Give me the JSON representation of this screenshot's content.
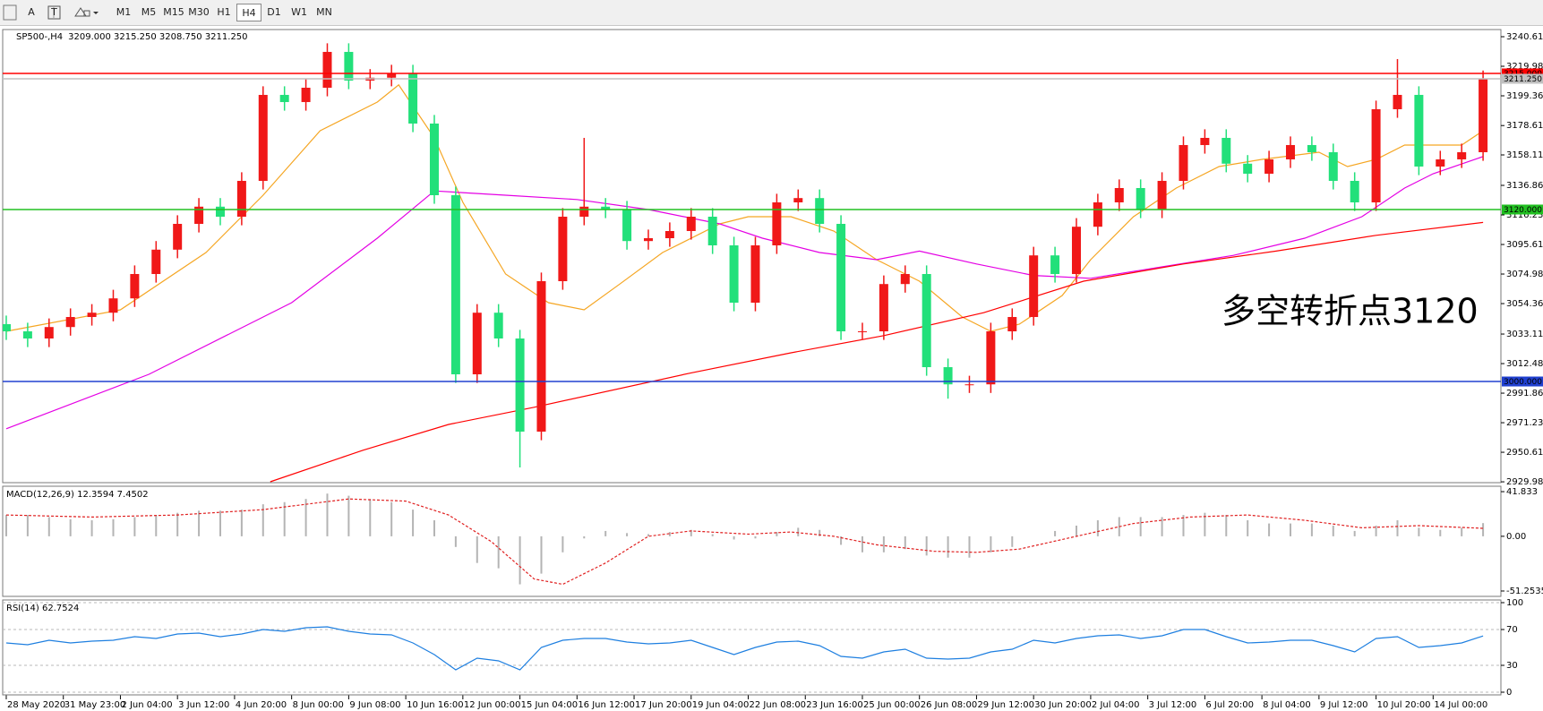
{
  "toolbar": {
    "tools": [
      "A",
      "T"
    ],
    "timeframes": [
      "M1",
      "M5",
      "M15",
      "M30",
      "H1",
      "H4",
      "D1",
      "W1",
      "MN"
    ],
    "selected_index": 5
  },
  "chart_data": [
    {
      "type": "candlestick",
      "title": "SP500-,H4",
      "subtitle": "3209.000 3215.250 3208.750 3211.250",
      "x": [
        0,
        3,
        6,
        9,
        12,
        15,
        18,
        21,
        24,
        27,
        30,
        33,
        36,
        39,
        42,
        45,
        48,
        51,
        54,
        57,
        60,
        63,
        66,
        69,
        72,
        75,
        78,
        81,
        84,
        87,
        90,
        93,
        96,
        99,
        102,
        105,
        108,
        111,
        114,
        117,
        120,
        123,
        126,
        129,
        132,
        135,
        138,
        141,
        144,
        147,
        150,
        153,
        156,
        159,
        162,
        165,
        168,
        171,
        174,
        177,
        180,
        183,
        186,
        189,
        192,
        195,
        198,
        201,
        204,
        207
      ],
      "open": [
        3040,
        3035,
        3030,
        3038,
        3045,
        3048,
        3058,
        3075,
        3092,
        3110,
        3122,
        3115,
        3140,
        3200,
        3195,
        3205,
        3230,
        3210,
        3212,
        3215,
        3180,
        3130,
        3005,
        3048,
        3030,
        2965,
        3070,
        3115,
        3122,
        3120,
        3098,
        3100,
        3105,
        3115,
        3095,
        3055,
        3095,
        3125,
        3128,
        3110,
        3035,
        3035,
        3068,
        3075,
        3010,
        2998,
        2998,
        3035,
        3045,
        3088,
        3075,
        3108,
        3125,
        3135,
        3120,
        3140,
        3165,
        3170,
        3152,
        3145,
        3155,
        3165,
        3160,
        3140,
        3125,
        3190,
        3200,
        3150,
        3155,
        3160
      ],
      "high": [
        3046,
        3041,
        3044,
        3051,
        3054,
        3064,
        3081,
        3098,
        3116,
        3128,
        3128,
        3146,
        3206,
        3206,
        3211,
        3236,
        3236,
        3218,
        3221,
        3221,
        3186,
        3136,
        3054,
        3054,
        3036,
        3076,
        3121,
        3170,
        3128,
        3126,
        3106,
        3111,
        3121,
        3121,
        3101,
        3101,
        3131,
        3134,
        3134,
        3116,
        3041,
        3074,
        3081,
        3081,
        3016,
        3004,
        3041,
        3051,
        3094,
        3094,
        3114,
        3131,
        3141,
        3141,
        3146,
        3171,
        3176,
        3176,
        3158,
        3161,
        3171,
        3171,
        3166,
        3146,
        3196,
        3225,
        3206,
        3161,
        3166,
        3217
      ],
      "low": [
        3029,
        3024,
        3024,
        3032,
        3039,
        3042,
        3052,
        3069,
        3086,
        3104,
        3109,
        3109,
        3134,
        3189,
        3189,
        3199,
        3204,
        3204,
        3206,
        3174,
        3124,
        2999,
        2999,
        3024,
        2940,
        2959,
        3064,
        3109,
        3114,
        3092,
        3092,
        3094,
        3099,
        3089,
        3049,
        3049,
        3089,
        3119,
        3104,
        3029,
        3029,
        3029,
        3062,
        3004,
        2988,
        2992,
        2992,
        3029,
        3039,
        3069,
        3069,
        3102,
        3119,
        3114,
        3114,
        3134,
        3159,
        3146,
        3139,
        3139,
        3149,
        3154,
        3134,
        3119,
        3119,
        3184,
        3144,
        3144,
        3149,
        3154
      ],
      "close": [
        3035,
        3030,
        3038,
        3045,
        3048,
        3058,
        3075,
        3092,
        3110,
        3122,
        3115,
        3140,
        3200,
        3195,
        3205,
        3230,
        3210,
        3212,
        3215,
        3180,
        3130,
        3005,
        3048,
        3030,
        2965,
        3070,
        3115,
        3122,
        3120,
        3098,
        3100,
        3105,
        3115,
        3095,
        3055,
        3095,
        3125,
        3128,
        3110,
        3035,
        3035,
        3068,
        3075,
        3010,
        2998,
        2998,
        3035,
        3045,
        3088,
        3075,
        3108,
        3125,
        3135,
        3120,
        3140,
        3165,
        3170,
        3152,
        3145,
        3155,
        3165,
        3160,
        3140,
        3125,
        3190,
        3200,
        3150,
        3155,
        3160,
        3211
      ],
      "up_color": "#f01818",
      "down_color": "#22e07a",
      "lines": [
        {
          "color": "#f5a623",
          "x": [
            0,
            16,
            28,
            36,
            44,
            52,
            55,
            60,
            64,
            70,
            76,
            81,
            86,
            92,
            100,
            104,
            110,
            116,
            122,
            128,
            134,
            138,
            142,
            148,
            152,
            158,
            164,
            170,
            176,
            184,
            188,
            192,
            196,
            200,
            204,
            207
          ],
          "values": [
            3035,
            3050,
            3090,
            3130,
            3175,
            3195,
            3207,
            3170,
            3125,
            3075,
            3055,
            3050,
            3068,
            3090,
            3110,
            3115,
            3115,
            3105,
            3085,
            3070,
            3045,
            3035,
            3040,
            3060,
            3085,
            3115,
            3135,
            3150,
            3155,
            3160,
            3150,
            3155,
            3165,
            3165,
            3165,
            3175
          ]
        },
        {
          "color": "#e400e4",
          "x": [
            0,
            20,
            40,
            52,
            60,
            70,
            80,
            90,
            100,
            106,
            114,
            122,
            128,
            136,
            144,
            152,
            162,
            172,
            182,
            190,
            196,
            200,
            207
          ],
          "values": [
            2967,
            3005,
            3055,
            3100,
            3133,
            3130,
            3127,
            3120,
            3110,
            3100,
            3090,
            3085,
            3091,
            3082,
            3074,
            3072,
            3080,
            3088,
            3100,
            3115,
            3135,
            3145,
            3157
          ]
        },
        {
          "color": "#ff0000",
          "x": [
            37,
            50,
            62,
            74,
            96,
            110,
            123,
            137,
            151,
            165,
            178,
            192,
            207
          ],
          "values": [
            2930,
            2952,
            2970,
            2982,
            3006,
            3020,
            3032,
            3048,
            3070,
            3082,
            3091,
            3102,
            3111
          ]
        }
      ],
      "levels": [
        {
          "value": 3215,
          "label": "3215.000",
          "color": "#ff0000",
          "text_color": "#ffffff"
        },
        {
          "value": 3211.25,
          "label": "3211.250",
          "color": "#c0c0c0",
          "text_color": "#000000"
        },
        {
          "value": 3120,
          "label": "3120.000",
          "color": "#22c022",
          "text_color": "#ffffff"
        },
        {
          "value": 3000,
          "label": "3000.000",
          "color": "#2040d0",
          "text_color": "#ffffff"
        }
      ],
      "annotation": {
        "text": "多空转折点3120",
        "color": "#e8201c"
      },
      "xlim": [
        -0.5,
        209.5
      ],
      "ylim": [
        2929.4,
        3245.6
      ],
      "yticks": [
        {
          "value": 3240.61,
          "label": "3240.610"
        },
        {
          "value": 3219.985,
          "label": "3219.985"
        },
        {
          "value": 3199.36,
          "label": "3199.360"
        },
        {
          "value": 3178.61,
          "label": "3178.610"
        },
        {
          "value": 3158.11,
          "label": "3158.110"
        },
        {
          "value": 3136.86,
          "label": "3136.860"
        },
        {
          "value": 3116.235,
          "label": "3116.235"
        },
        {
          "value": 3095.61,
          "label": "3095.610"
        },
        {
          "value": 3074.985,
          "label": "3074.985"
        },
        {
          "value": 3054.36,
          "label": "3054.360"
        },
        {
          "value": 3033.11,
          "label": "3033.110"
        },
        {
          "value": 3012.485,
          "label": "3012.485"
        },
        {
          "value": 2991.86,
          "label": "2991.860"
        },
        {
          "value": 2971.235,
          "label": "2971.235"
        },
        {
          "value": 2950.61,
          "label": "2950.610"
        },
        {
          "value": 2929.985,
          "label": "2929.985"
        }
      ],
      "xticks": [
        {
          "value": 0,
          "label": "28 May 2020"
        },
        {
          "value": 8,
          "label": "31 May 23:00"
        },
        {
          "value": 16,
          "label": "2 Jun 04:00"
        },
        {
          "value": 24,
          "label": "3 Jun 12:00"
        },
        {
          "value": 32,
          "label": "4 Jun 20:00"
        },
        {
          "value": 40,
          "label": "8 Jun 00:00"
        },
        {
          "value": 48,
          "label": "9 Jun 08:00"
        },
        {
          "value": 56,
          "label": "10 Jun 16:00"
        },
        {
          "value": 64,
          "label": "12 Jun 00:00"
        },
        {
          "value": 72,
          "label": "15 Jun 04:00"
        },
        {
          "value": 80,
          "label": "16 Jun 12:00"
        },
        {
          "value": 88,
          "label": "17 Jun 20:00"
        },
        {
          "value": 96,
          "label": "19 Jun 04:00"
        },
        {
          "value": 104,
          "label": "22 Jun 08:00"
        },
        {
          "value": 112,
          "label": "23 Jun 16:00"
        },
        {
          "value": 120,
          "label": "25 Jun 00:00"
        },
        {
          "value": 128,
          "label": "26 Jun 08:00"
        },
        {
          "value": 136,
          "label": "29 Jun 12:00"
        },
        {
          "value": 144,
          "label": "30 Jun 20:00"
        },
        {
          "value": 152,
          "label": "2 Jul 04:00"
        },
        {
          "value": 160,
          "label": "3 Jul 12:00"
        },
        {
          "value": 168,
          "label": "6 Jul 20:00"
        },
        {
          "value": 176,
          "label": "8 Jul 04:00"
        },
        {
          "value": 184,
          "label": "9 Jul 12:00"
        },
        {
          "value": 192,
          "label": "10 Jul 20:00"
        },
        {
          "value": 200,
          "label": "14 Jul 00:00"
        }
      ]
    },
    {
      "type": "macd",
      "label": "MACD(12,26,9) 12.3594 7.4502",
      "bar_color": "#b4b4b4",
      "signal_color": "#e02020",
      "x": [
        0,
        3,
        6,
        9,
        12,
        15,
        18,
        21,
        24,
        27,
        30,
        33,
        36,
        39,
        42,
        45,
        48,
        51,
        54,
        57,
        60,
        63,
        66,
        69,
        72,
        75,
        78,
        81,
        84,
        87,
        90,
        93,
        96,
        99,
        102,
        105,
        108,
        111,
        114,
        117,
        120,
        123,
        126,
        129,
        132,
        135,
        138,
        141,
        144,
        147,
        150,
        153,
        156,
        159,
        162,
        165,
        168,
        171,
        174,
        177,
        180,
        183,
        186,
        189,
        192,
        195,
        198,
        201,
        204,
        207
      ],
      "values": [
        20,
        20,
        18,
        16,
        15,
        16,
        18,
        20,
        22,
        24,
        24,
        25,
        30,
        32,
        35,
        40,
        38,
        35,
        32,
        25,
        15,
        -10,
        -25,
        -30,
        -45,
        -35,
        -15,
        -2,
        5,
        3,
        2,
        4,
        6,
        2,
        -3,
        -2,
        4,
        8,
        6,
        -8,
        -15,
        -15,
        -12,
        -18,
        -20,
        -20,
        -15,
        -10,
        0,
        5,
        10,
        15,
        18,
        18,
        18,
        20,
        22,
        20,
        15,
        12,
        12,
        12,
        10,
        5,
        10,
        15,
        8,
        6,
        8,
        12.3594
      ],
      "signal_x": [
        0,
        12,
        24,
        36,
        48,
        56,
        62,
        68,
        74,
        78,
        84,
        90,
        96,
        104,
        110,
        116,
        122,
        130,
        136,
        142,
        150,
        158,
        166,
        174,
        182,
        190,
        198,
        207
      ],
      "signal": [
        20,
        18,
        20,
        25,
        35,
        33,
        20,
        -5,
        -40,
        -45,
        -25,
        0,
        5,
        2,
        4,
        0,
        -8,
        -14,
        -15,
        -12,
        0,
        12,
        18,
        20,
        15,
        8,
        10,
        7.4502
      ],
      "xlim": [
        -0.5,
        209.5
      ],
      "ylim": [
        -56.3,
        46.9
      ],
      "yticks": [
        41.833,
        {
          "value": 0,
          "label": "0.00"
        },
        -51.2535
      ]
    },
    {
      "type": "line",
      "label": "RSI(14) 62.7524",
      "color": "#1e7fe0",
      "grid": true,
      "x": [
        0,
        3,
        6,
        9,
        12,
        15,
        18,
        21,
        24,
        27,
        30,
        33,
        36,
        39,
        42,
        45,
        48,
        51,
        54,
        57,
        60,
        63,
        66,
        69,
        72,
        75,
        78,
        81,
        84,
        87,
        90,
        93,
        96,
        99,
        102,
        105,
        108,
        111,
        114,
        117,
        120,
        123,
        126,
        129,
        132,
        135,
        138,
        141,
        144,
        147,
        150,
        153,
        156,
        159,
        162,
        165,
        168,
        171,
        174,
        177,
        180,
        183,
        186,
        189,
        192,
        195,
        198,
        201,
        204,
        207
      ],
      "values": [
        55,
        53,
        58,
        55,
        57,
        58,
        62,
        60,
        65,
        66,
        62,
        65,
        70,
        68,
        72,
        73,
        68,
        65,
        64,
        55,
        42,
        25,
        38,
        35,
        25,
        50,
        58,
        60,
        60,
        56,
        54,
        55,
        58,
        50,
        42,
        50,
        56,
        57,
        52,
        40,
        38,
        45,
        48,
        38,
        37,
        38,
        45,
        48,
        58,
        55,
        60,
        63,
        64,
        60,
        63,
        70,
        70,
        62,
        55,
        56,
        58,
        58,
        52,
        45,
        60,
        62,
        50,
        52,
        55,
        62.7524
      ],
      "xlim": [
        -0.5,
        209.5
      ],
      "ylim": [
        -3,
        103
      ],
      "yticks": [
        100,
        70,
        30,
        0
      ]
    }
  ]
}
